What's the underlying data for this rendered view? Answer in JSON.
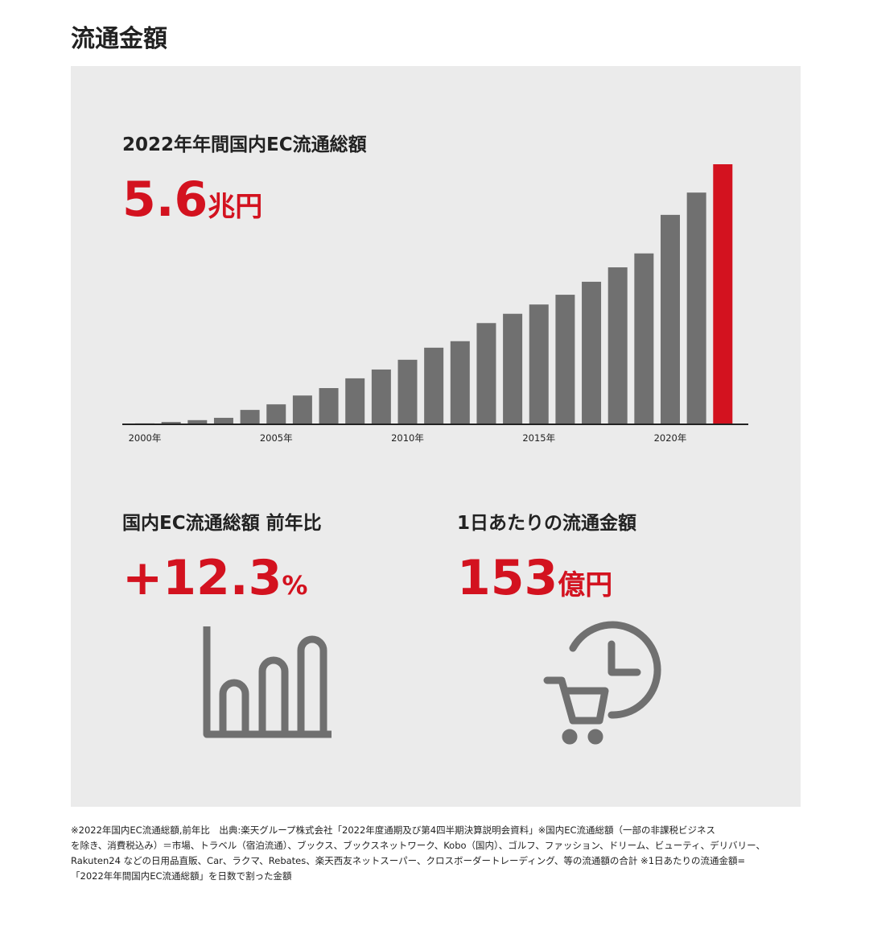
{
  "page_title": "流通金額",
  "chart_data": {
    "type": "bar",
    "title": "2022年年間国内EC流通総額",
    "unit": "兆円",
    "categories": [
      "2000年",
      null,
      null,
      null,
      null,
      "2005年",
      null,
      null,
      null,
      null,
      "2010年",
      null,
      null,
      null,
      null,
      "2015年",
      null,
      null,
      null,
      null,
      "2020年",
      null,
      null
    ],
    "values": [
      0.02,
      0.05,
      0.09,
      0.14,
      0.31,
      0.43,
      0.62,
      0.78,
      0.99,
      1.18,
      1.39,
      1.65,
      1.79,
      2.18,
      2.38,
      2.58,
      2.79,
      3.07,
      3.38,
      3.68,
      4.51,
      4.99,
      5.6
    ],
    "colors": [
      "#707070",
      "#707070",
      "#707070",
      "#707070",
      "#707070",
      "#707070",
      "#707070",
      "#707070",
      "#707070",
      "#707070",
      "#707070",
      "#707070",
      "#707070",
      "#707070",
      "#707070",
      "#707070",
      "#707070",
      "#707070",
      "#707070",
      "#707070",
      "#707070",
      "#707070",
      "#d3121f"
    ]
  },
  "stats": [
    {
      "label": "国内EC流通総額  前年比",
      "value": "+12.3",
      "unit": "%"
    },
    {
      "label": "1日あたりの流通金額",
      "value": "153",
      "unit": "億円"
    }
  ],
  "footnote": [
    "※2022年国内EC流通総額,前年比　出典:楽天グループ株式会社「2022年度通期及び第4四半期決算説明会資料」※国内EC流通総額（一部の非課税ビジネス",
    "を除き、消費税込み）＝市場、トラベル（宿泊流通）、ブックス、ブックスネットワーク、Kobo（国内）、ゴルフ、ファッション、ドリーム、ビューティ、デリバリー、",
    "Rakuten24 などの日用品直販、Car、ラクマ、Rebates、楽天西友ネットスーパー、クロスボーダートレーディング、等の流通額の合計 ※1日あたりの流通金額=",
    "「2022年年間国内EC流通総額」を日数で割った金額"
  ]
}
